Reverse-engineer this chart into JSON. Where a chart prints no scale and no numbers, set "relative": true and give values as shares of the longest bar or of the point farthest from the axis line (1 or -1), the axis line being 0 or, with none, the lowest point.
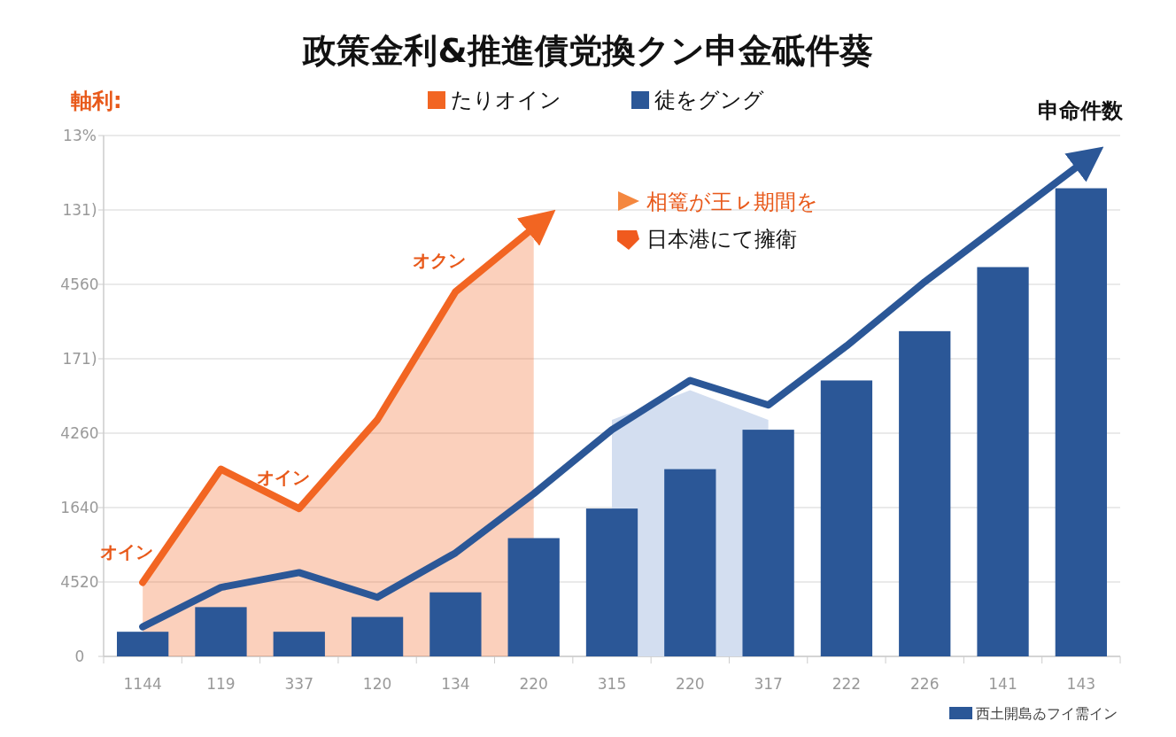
{
  "chart_data": {
    "type": "bar",
    "relative": true,
    "title": "政策金利&推進債党換クン申金砥件葵",
    "ylabel": "軸利:",
    "y2label": "申命件数",
    "categories": [
      "1144",
      "119",
      "337",
      "120",
      "134",
      "220",
      "315",
      "220",
      "317",
      "222",
      "226",
      "141",
      "143"
    ],
    "series": [
      {
        "type": "area",
        "color": "#d3def0",
        "values": [
          null,
          null,
          null,
          null,
          null,
          null,
          0.48,
          0.54,
          0.48,
          null,
          null,
          null,
          null
        ]
      },
      {
        "name": "西土開島ゐフイ需イン",
        "color": "#2b5797",
        "values": [
          0.05,
          0.1,
          0.05,
          0.08,
          0.13,
          0.24,
          0.3,
          0.38,
          0.46,
          0.56,
          0.66,
          0.79,
          0.95
        ]
      },
      {
        "type": "area",
        "name": "たりオイン",
        "color": "#f26522",
        "values": [
          0.15,
          0.38,
          0.3,
          0.48,
          0.74,
          0.87,
          null,
          null,
          null,
          null,
          null,
          null,
          null
        ]
      },
      {
        "type": "line",
        "name": "徒をグング",
        "color": "#2b5797",
        "values": [
          0.06,
          0.14,
          0.17,
          0.12,
          0.21,
          0.33,
          0.46,
          0.56,
          0.51,
          0.63,
          0.76,
          0.88,
          1
        ]
      }
    ],
    "grid": "y",
    "legend": "top",
    "annotations": [
      {
        "text": "オイン",
        "x": "1144",
        "y": 0.15
      },
      {
        "text": "オイン",
        "x": "337",
        "y": 0.3
      },
      {
        "text": "オクン",
        "x": "134",
        "y": 0.74
      },
      "0",
      "4520",
      "1640",
      "4260",
      "171)",
      "4560",
      "131)",
      "13%",
      "相篭が王ㇾ期間を",
      "日本港にて擁衛"
    ]
  }
}
